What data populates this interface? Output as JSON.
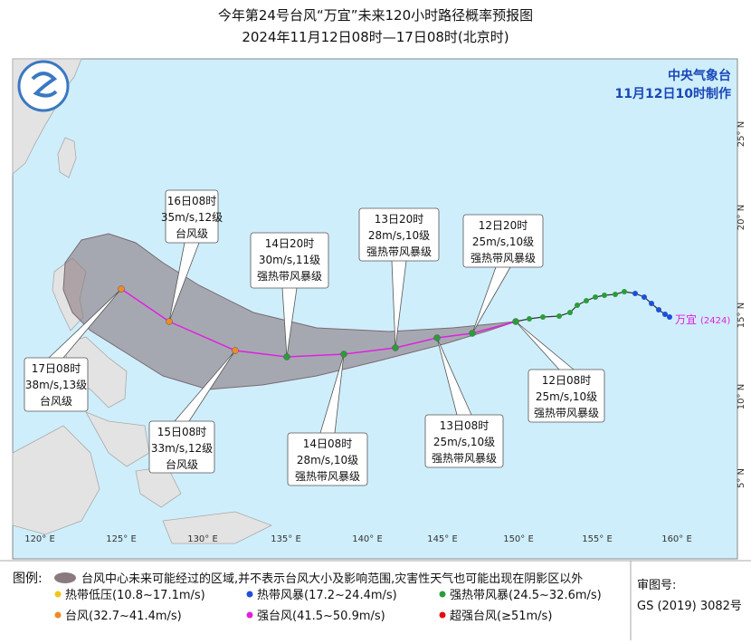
{
  "header": {
    "title": "今年第24号台风“万宜”未来120小时路径概率预报图",
    "subtitle": "2024年11月12日08时—17日08时(北京时)"
  },
  "agency": {
    "name": "中央气象台",
    "issued": "11月12日10时制作"
  },
  "map": {
    "lon_labels": [
      "120° E",
      "125° E",
      "130° E",
      "135° E",
      "140° E",
      "145° E",
      "150° E",
      "155° E",
      "160° E"
    ],
    "lat_labels": [
      "25° N",
      "20° N",
      "15° N",
      "10° N",
      "5° N"
    ],
    "storm": {
      "name": "万宜",
      "code": "(2424)"
    }
  },
  "forecast_points": [
    {
      "time": "12日08时",
      "wind": "25m/s,10级",
      "level": "强热带风暴级"
    },
    {
      "time": "12日20时",
      "wind": "25m/s,10级",
      "level": "强热带风暴级"
    },
    {
      "time": "13日08时",
      "wind": "25m/s,10级",
      "level": "强热带风暴级"
    },
    {
      "time": "13日20时",
      "wind": "28m/s,10级",
      "level": "强热带风暴级"
    },
    {
      "time": "14日08时",
      "wind": "28m/s,10级",
      "level": "强热带风暴级"
    },
    {
      "time": "14日20时",
      "wind": "30m/s,11级",
      "level": "强热带风暴级"
    },
    {
      "time": "15日08时",
      "wind": "33m/s,12级",
      "level": "台风级"
    },
    {
      "time": "16日08时",
      "wind": "35m/s,12级",
      "level": "台风级"
    },
    {
      "time": "17日08时",
      "wind": "38m/s,13级",
      "level": "台风级"
    }
  ],
  "legend": {
    "title": "图例:",
    "cone_text": "台风中心未来可能经过的区域,并不表示台风大小及影响范围,灾害性天气也可能出现在阴影区以外",
    "items": [
      "热带低压(10.8~17.1m/s)",
      "热带风暴(17.2~24.4m/s)",
      "强热带风暴(24.5~32.6m/s)",
      "台风(32.7~41.4m/s)",
      "强台风(41.5~50.9m/s)",
      "超强台风(≥51m/s)"
    ]
  },
  "review": {
    "title": "审图号:",
    "code": "GS (2019) 3082号"
  }
}
